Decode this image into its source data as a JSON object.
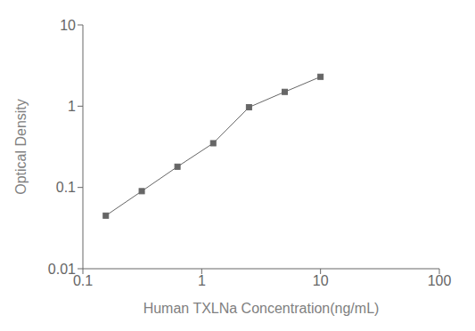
{
  "chart_data": {
    "type": "line",
    "x": [
      0.156,
      0.313,
      0.625,
      1.25,
      2.5,
      5.0,
      10.0
    ],
    "values": [
      0.045,
      0.09,
      0.18,
      0.35,
      0.97,
      1.5,
      2.3
    ],
    "xlabel": "Human TXLNa Concentration(ng/mL)",
    "ylabel": "Optical Density",
    "xlim": [
      0.1,
      100
    ],
    "ylim": [
      0.01,
      10
    ],
    "xticks": [
      0.1,
      1,
      10,
      100
    ],
    "yticks": [
      0.01,
      0.1,
      1,
      10
    ],
    "log": true,
    "color": "#666666",
    "marker": "square"
  }
}
